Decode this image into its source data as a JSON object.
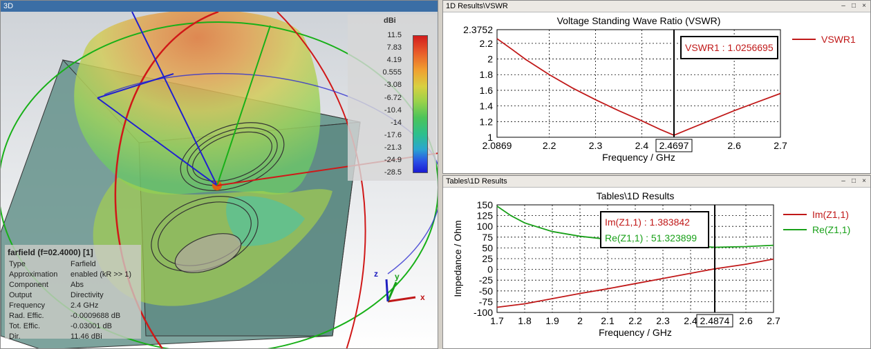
{
  "view3d": {
    "title": "3D",
    "colorbar": {
      "unit": "dBi",
      "labels": [
        "11.5",
        "7.83",
        "4.19",
        "0.555",
        "-3.08",
        "-6.72",
        "-10.4",
        "-14",
        "-17.6",
        "-21.3",
        "-24.9",
        "-28.5"
      ]
    },
    "farfield_info": {
      "header": "farfield (f=02.4000) [1]",
      "rows": [
        {
          "k": "Type",
          "v": "Farfield"
        },
        {
          "k": "Approximation",
          "v": "enabled (kR >> 1)"
        },
        {
          "k": "Component",
          "v": "Abs"
        },
        {
          "k": "Output",
          "v": "Directivity"
        },
        {
          "k": "Frequency",
          "v": "2.4 GHz"
        },
        {
          "k": "Rad. Effic.",
          "v": "-0.0009688 dB"
        },
        {
          "k": "Tot. Effic.",
          "v": "-0.03001 dB"
        },
        {
          "k": "Dir.",
          "v": "11.46 dBi"
        }
      ]
    },
    "axes": {
      "x": "x",
      "y": "y",
      "z": "z"
    }
  },
  "vswr_panel": {
    "title": "1D Results\\VSWR",
    "window_controls": [
      "–",
      "□",
      "×"
    ]
  },
  "tables_panel": {
    "title": "Tables\\1D Results",
    "window_controls": [
      "–",
      "□",
      "×"
    ]
  },
  "colors": {
    "vswr": "#c01818",
    "im": "#c01818",
    "re": "#18a018",
    "titlebar_active": "#3b6ea5"
  },
  "chart_data": [
    {
      "type": "line",
      "title": "Voltage Standing Wave Ratio (VSWR)",
      "xlabel": "Frequency / GHz",
      "ylabel": "",
      "xlim": [
        2.0869,
        2.7
      ],
      "ylim": [
        1,
        2.3752
      ],
      "xticks": [
        "2.0869",
        "2.2",
        "2.3",
        "2.4",
        "2.4697",
        "2.6",
        "2.7"
      ],
      "xtick_values": [
        2.0869,
        2.2,
        2.3,
        2.4,
        2.4697,
        2.6,
        2.7
      ],
      "yticks": [
        "2.3752",
        "2.2",
        "2",
        "1.8",
        "1.6",
        "1.4",
        "1.2",
        "1"
      ],
      "ytick_values": [
        2.3752,
        2.2,
        2.0,
        1.8,
        1.6,
        1.4,
        1.2,
        1.0
      ],
      "grid": true,
      "legend": "right",
      "series": [
        {
          "name": "VSWR1",
          "x": [
            2.0869,
            2.12,
            2.15,
            2.2,
            2.25,
            2.3,
            2.35,
            2.4,
            2.44,
            2.4697,
            2.5,
            2.55,
            2.6,
            2.65,
            2.7
          ],
          "y": [
            2.26,
            2.12,
            1.99,
            1.8,
            1.63,
            1.48,
            1.34,
            1.21,
            1.1,
            1.026,
            1.1,
            1.22,
            1.34,
            1.45,
            1.56
          ]
        }
      ],
      "marker": {
        "x": 2.4697,
        "label": "VSWR1 : 1.0256695"
      }
    },
    {
      "type": "line",
      "title": "Tables\\1D Results",
      "xlabel": "Frequency / GHz",
      "ylabel": "Impedance / Ohm",
      "xlim": [
        1.7,
        2.7
      ],
      "ylim": [
        -100,
        150
      ],
      "xticks": [
        "1.7",
        "1.8",
        "1.9",
        "2",
        "2.1",
        "2.2",
        "2.3",
        "2.4",
        "2.4874",
        "2.6",
        "2.7"
      ],
      "xtick_values": [
        1.7,
        1.8,
        1.9,
        2.0,
        2.1,
        2.2,
        2.3,
        2.4,
        2.4874,
        2.6,
        2.7
      ],
      "yticks": [
        "150",
        "125",
        "100",
        "75",
        "50",
        "25",
        "0",
        "-25",
        "-50",
        "-75",
        "-100"
      ],
      "ytick_values": [
        150,
        125,
        100,
        75,
        50,
        25,
        0,
        -25,
        -50,
        -75,
        -100
      ],
      "grid": true,
      "legend": "right",
      "series": [
        {
          "name": "Im(Z1,1)",
          "x": [
            1.7,
            1.8,
            1.9,
            2.0,
            2.1,
            2.2,
            2.3,
            2.4,
            2.4874,
            2.6,
            2.7
          ],
          "y": [
            -88,
            -80,
            -68,
            -56,
            -45,
            -33,
            -21,
            -9,
            1.38,
            12,
            24
          ]
        },
        {
          "name": "Re(Z1,1)",
          "x": [
            1.7,
            1.75,
            1.8,
            1.9,
            2.0,
            2.1,
            2.2,
            2.3,
            2.4,
            2.4874,
            2.6,
            2.7
          ],
          "y": [
            147,
            125,
            108,
            88,
            77,
            70,
            64,
            59,
            55,
            51.32,
            53,
            56
          ]
        }
      ],
      "marker": {
        "x": 2.4874,
        "labels": [
          "Im(Z1,1) : 1.383842",
          "Re(Z1,1) : 51.323899"
        ]
      }
    }
  ]
}
